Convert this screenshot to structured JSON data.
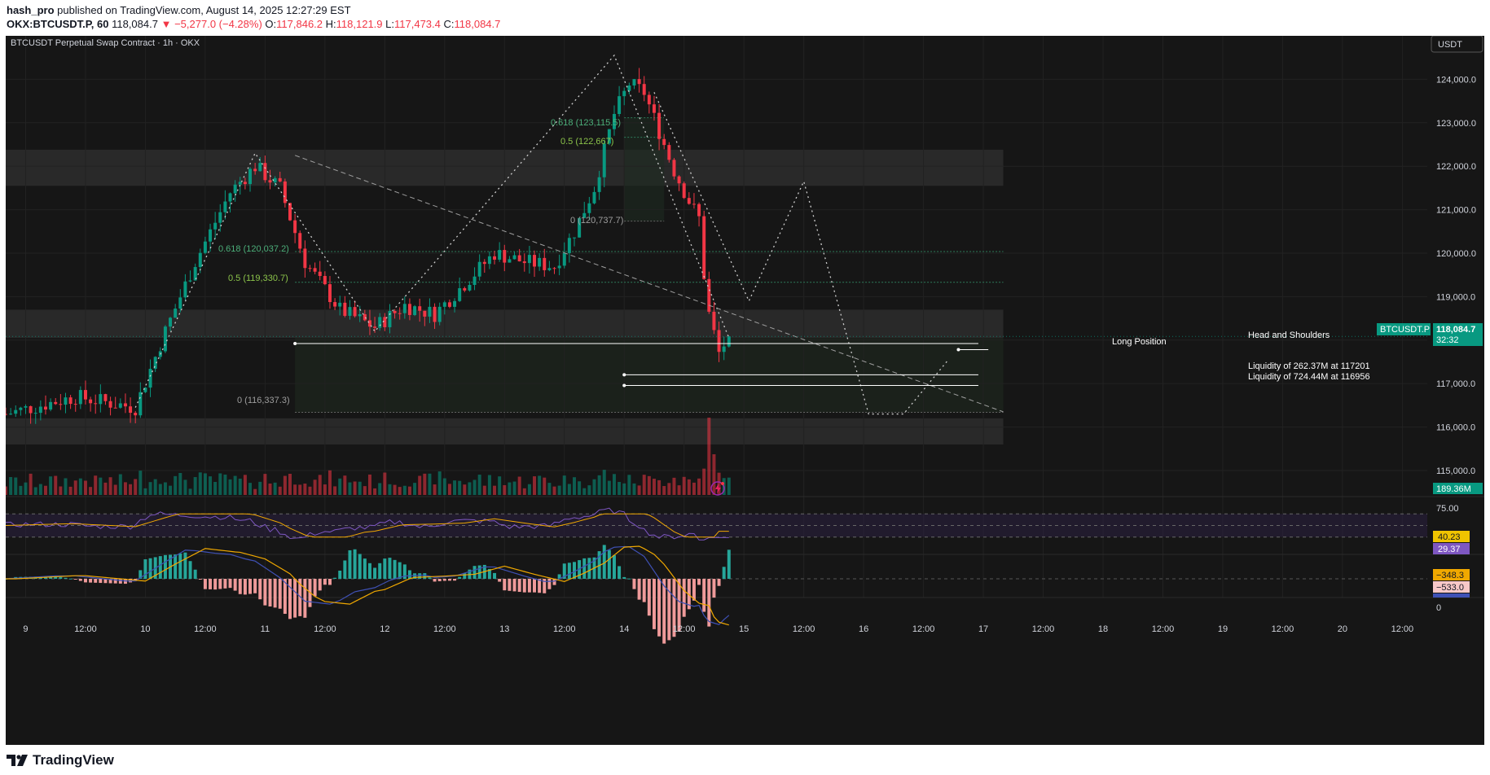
{
  "header": {
    "author": "hash_pro",
    "published": "published on TradingView.com, August 14, 2025 12:27:29 EST",
    "ticker": "OKX:BTCUSDT.P, 60",
    "price": "118,084.7",
    "change": "−5,277.0 (−4.28%)",
    "o_label": "O:",
    "o": "117,846.2",
    "h_label": "H:",
    "h": "118,121.9",
    "l_label": "L:",
    "l": "117,473.4",
    "c_label": "C:",
    "c": "118,084.7"
  },
  "chart": {
    "instrument": "BTCUSDT Perpetual Swap Contract · 1h · OKX",
    "currency": "USDT",
    "last_price_tag": "BTCUSDT.P",
    "last_price": "118,084.7",
    "countdown": "32:32",
    "volume_tag": "189.36M",
    "rsi_tick": "75.00",
    "rsi_val1": "40.23",
    "rsi_val2": "29.37",
    "macd_val1": "−348.3",
    "macd_val2": "−533.0",
    "macd_zero": "0",
    "annotations": {
      "head_shoulders": "Head and Shoulders",
      "long_position": "Long Position",
      "liq1": "Liquidity of 262.37M at 117201",
      "liq2": "Liquidity of 724.44M at 116956"
    },
    "fib_labels": {
      "f1_618": "0.618 (123,115.5)",
      "f1_5": "0.5 (122,667)",
      "f1_0": "0 (120,737.7)",
      "f2_618": "0.618 (120,037.2)",
      "f2_5": "0.5 (119,330.7)",
      "f2_0": "0 (116,337.3)"
    },
    "colors": {
      "up": "#089981",
      "down": "#f23645",
      "bg": "#161616",
      "price_tag": "#089981",
      "rsi": "#7e57c2",
      "signal": "#f0a800"
    }
  },
  "chart_data": {
    "type": "candlestick",
    "title": "BTCUSDT Perpetual Swap Contract · 1h · OKX",
    "ylabel": "USDT",
    "ylim": [
      114400,
      125000
    ],
    "y_ticks": [
      115000,
      116000,
      117000,
      118000,
      119000,
      120000,
      121000,
      122000,
      123000,
      124000
    ],
    "y_tick_labels": [
      "115,000.0",
      "116,000.0",
      "117,000.0",
      "118,000.0",
      "119,000.0",
      "120,000.0",
      "121,000.0",
      "122,000.0",
      "123,000.0",
      "124,000.0"
    ],
    "x_ticks": [
      "9",
      "12:00",
      "10",
      "12:00",
      "11",
      "12:00",
      "12",
      "12:00",
      "13",
      "12:00",
      "14",
      "12:00",
      "15",
      "12:00",
      "16",
      "12:00",
      "17",
      "12:00",
      "18",
      "12:00",
      "19",
      "12:00",
      "20",
      "12:00"
    ],
    "x_tick_hours": [
      0,
      12,
      24,
      36,
      48,
      60,
      72,
      84,
      96,
      108,
      120,
      132,
      144,
      156,
      168,
      180,
      192,
      204,
      216,
      228,
      240,
      252,
      264,
      276
    ],
    "x_range_hours": [
      -4,
      281
    ],
    "last_price": 118084.7,
    "zones": [
      {
        "name": "resistance",
        "from": 121550,
        "to": 122380
      },
      {
        "name": "mid",
        "from": 118050,
        "to": 118700
      },
      {
        "name": "support",
        "from": 115600,
        "to": 116200
      }
    ],
    "levels": [
      {
        "name": "Head and Shoulders",
        "price": 117920
      },
      {
        "name": "Long Position",
        "price": 117780
      },
      {
        "name": "Liquidity of 262.37M at 117201",
        "price": 117201
      },
      {
        "name": "Liquidity of 724.44M at 116956",
        "price": 116956
      }
    ],
    "fib": [
      {
        "label": "0.618 (123,115.5)",
        "price": 123115.5
      },
      {
        "label": "0.5 (122,667)",
        "price": 122667
      },
      {
        "label": "0 (120,737.7)",
        "price": 120737.7
      },
      {
        "label": "0.618 (120,037.2)",
        "price": 120037.2
      },
      {
        "label": "0.5 (119,330.7)",
        "price": 119330.7
      },
      {
        "label": "0 (116,337.3)",
        "price": 116337.3
      }
    ],
    "key_path": [
      {
        "h": -4,
        "p": 116300
      },
      {
        "h": 10,
        "p": 116700
      },
      {
        "h": 22,
        "p": 116450
      },
      {
        "h": 28,
        "p": 118200
      },
      {
        "h": 34,
        "p": 119800
      },
      {
        "h": 41,
        "p": 121400
      },
      {
        "h": 46,
        "p": 122000
      },
      {
        "h": 51,
        "p": 121500
      },
      {
        "h": 56,
        "p": 119800
      },
      {
        "h": 63,
        "p": 118700
      },
      {
        "h": 70,
        "p": 118300
      },
      {
        "h": 76,
        "p": 118800
      },
      {
        "h": 82,
        "p": 118600
      },
      {
        "h": 88,
        "p": 119300
      },
      {
        "h": 94,
        "p": 120000
      },
      {
        "h": 100,
        "p": 119800
      },
      {
        "h": 106,
        "p": 119700
      },
      {
        "h": 110,
        "p": 120500
      },
      {
        "h": 114,
        "p": 121500
      },
      {
        "h": 118,
        "p": 123200
      },
      {
        "h": 121,
        "p": 123900
      },
      {
        "h": 124,
        "p": 123700
      },
      {
        "h": 127,
        "p": 122800
      },
      {
        "h": 130,
        "p": 121900
      },
      {
        "h": 133,
        "p": 121200
      },
      {
        "h": 135,
        "p": 120800
      },
      {
        "h": 136,
        "p": 119500
      },
      {
        "h": 137,
        "p": 118600
      },
      {
        "h": 139,
        "p": 117700
      },
      {
        "h": 141,
        "p": 118084.7
      }
    ],
    "projection": [
      {
        "h": 126,
        "p": 123700
      },
      {
        "h": 145,
        "p": 118900
      },
      {
        "h": 156,
        "p": 121650
      },
      {
        "h": 169,
        "p": 116300
      },
      {
        "h": 176,
        "p": 116300
      },
      {
        "h": 185,
        "p": 117550
      }
    ],
    "trendline": [
      {
        "h": 54,
        "p": 122250
      },
      {
        "h": 196,
        "p": 116350
      }
    ],
    "rsi": {
      "ylim": [
        0,
        100
      ],
      "bands": [
        70,
        50,
        30
      ],
      "last": 29.37,
      "signal_last": 40.23
    },
    "macd": {
      "last_hist": -348.3,
      "last_signal": -533.0
    }
  }
}
